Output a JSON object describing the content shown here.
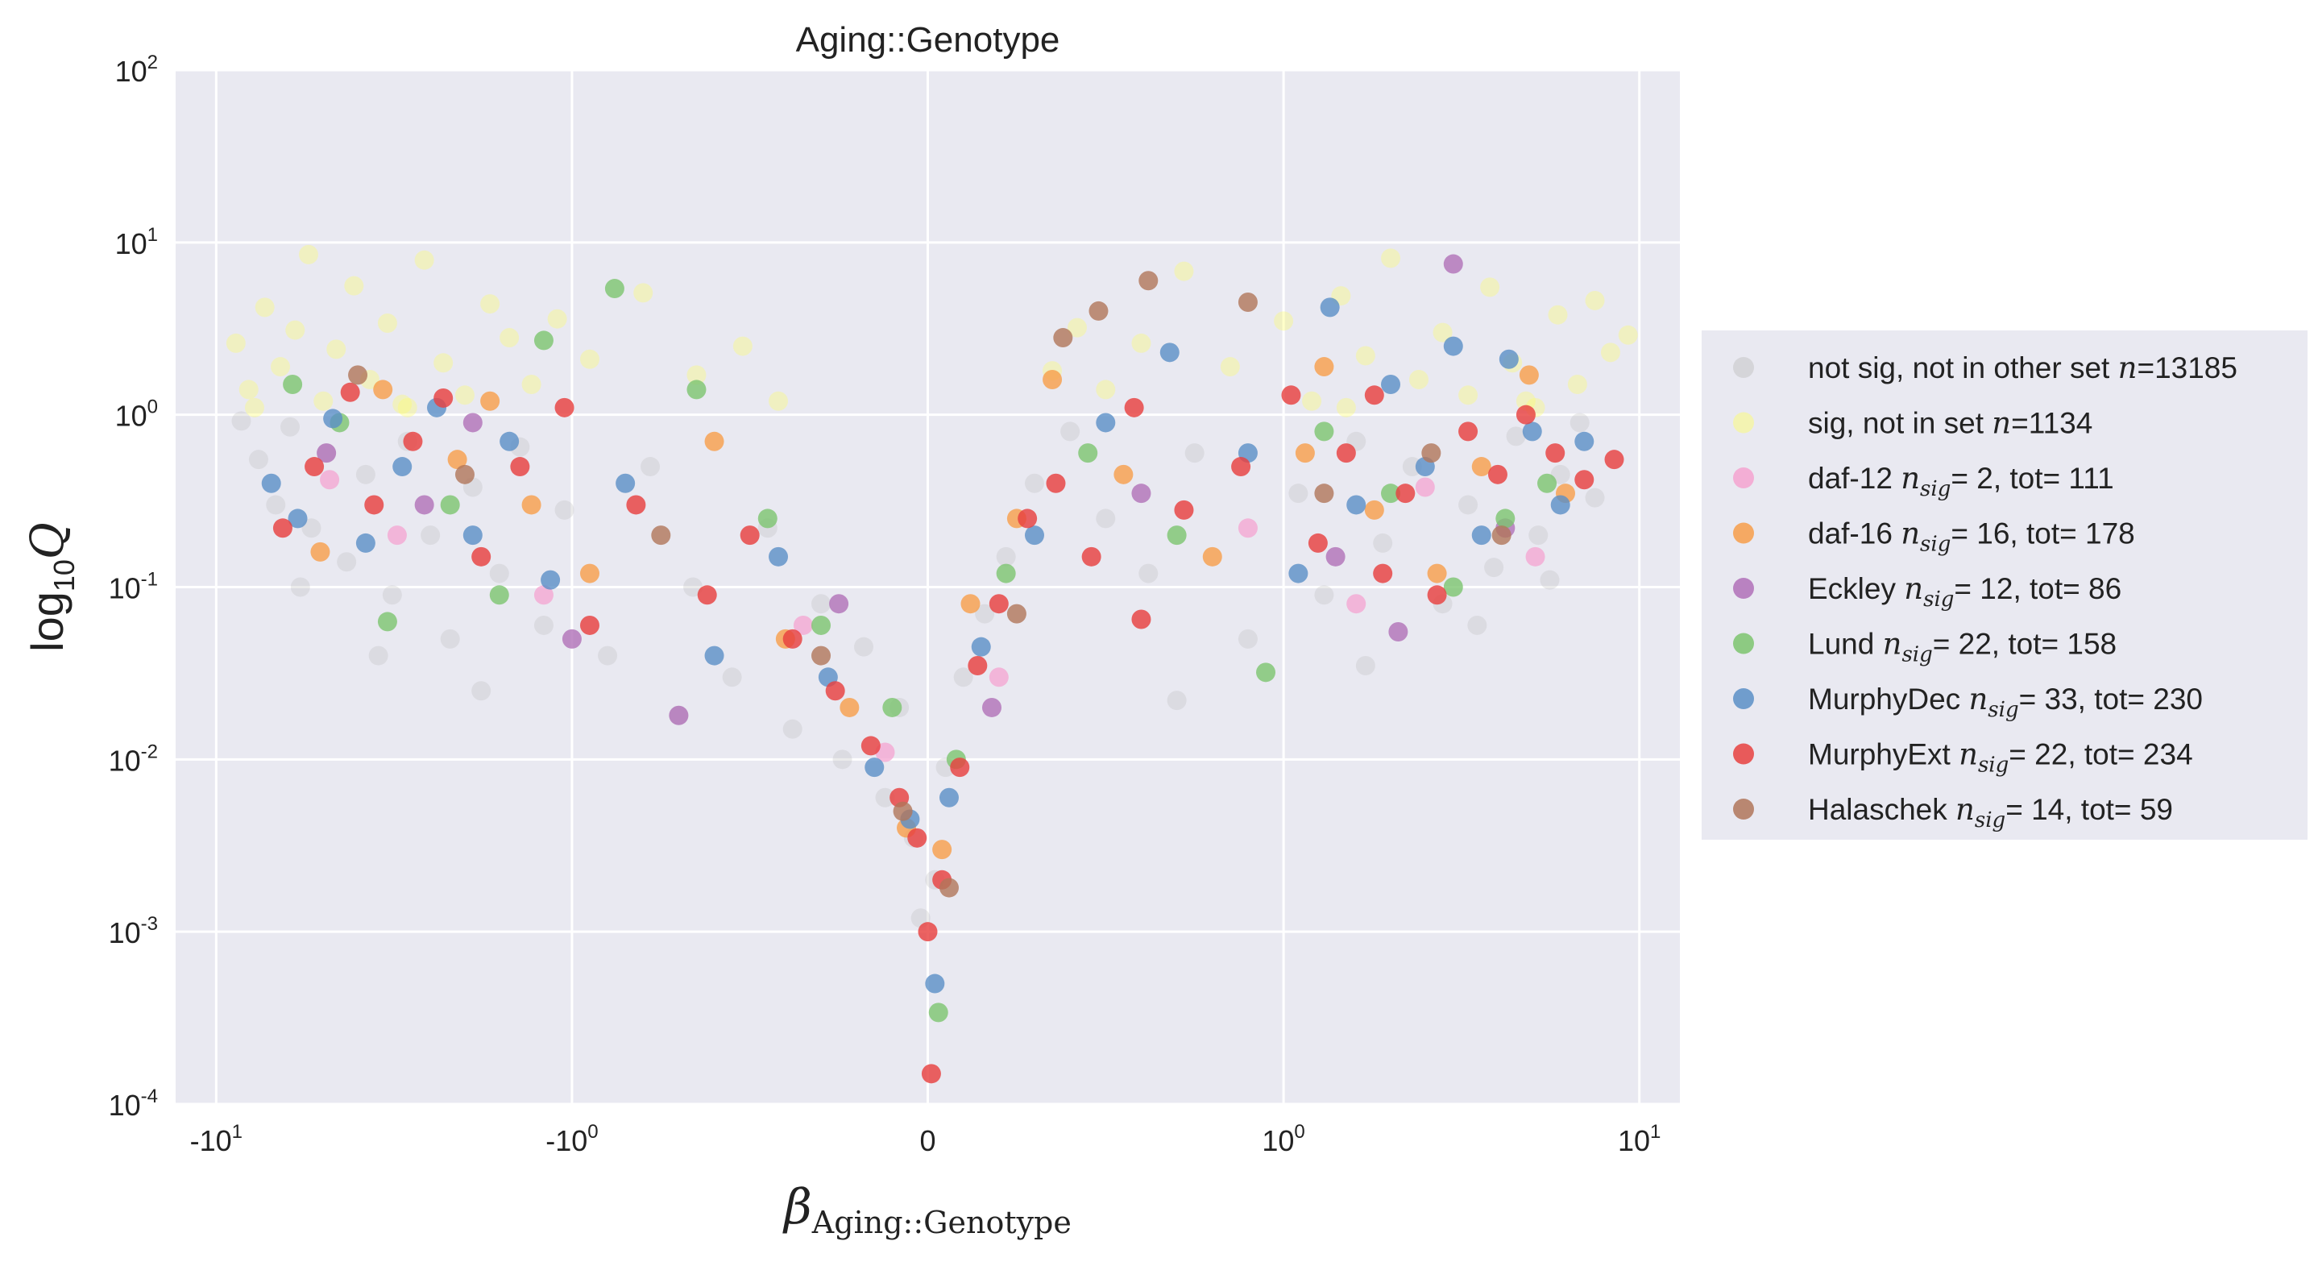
{
  "chart_data": {
    "type": "scatter",
    "title": "Aging::Genotype",
    "xlabel": {
      "symbol": "β",
      "subscript": "Aging::Genotype"
    },
    "ylabel": {
      "prefix": "log",
      "sub": "10",
      "var": "Q"
    },
    "x_scale": "symlog",
    "y_scale": "log",
    "xlim": [
      -13,
      13
    ],
    "ylim": [
      0.0001,
      100
    ],
    "grid": true,
    "legend_position": "right",
    "x_ticks": [
      {
        "value": -10,
        "base": "-10",
        "exp": "1"
      },
      {
        "value": -1,
        "base": "-10",
        "exp": "0"
      },
      {
        "value": 0,
        "base": "0",
        "exp": ""
      },
      {
        "value": 1,
        "base": "10",
        "exp": "0"
      },
      {
        "value": 10,
        "base": "10",
        "exp": "1"
      }
    ],
    "y_ticks": [
      {
        "value": 100,
        "base": "10",
        "exp": "2"
      },
      {
        "value": 10,
        "base": "10",
        "exp": "1"
      },
      {
        "value": 1,
        "base": "10",
        "exp": "0"
      },
      {
        "value": 0.1,
        "base": "10",
        "exp": "-1"
      },
      {
        "value": 0.01,
        "base": "10",
        "exp": "-2"
      },
      {
        "value": 0.001,
        "base": "10",
        "exp": "-3"
      },
      {
        "value": 0.0001,
        "base": "10",
        "exp": "-4"
      }
    ],
    "series": [
      {
        "name": "not sig, not in other set",
        "n_label": "n",
        "n_value": "13185",
        "color": "#bdbdbd",
        "opacity": 0.3,
        "points": [
          [
            -8.5,
            0.92
          ],
          [
            -7.6,
            0.55
          ],
          [
            -6.8,
            0.3
          ],
          [
            -6.2,
            0.85
          ],
          [
            -5.4,
            0.22
          ],
          [
            -4.9,
            0.6
          ],
          [
            -4.3,
            0.14
          ],
          [
            -3.8,
            0.45
          ],
          [
            -3.2,
            0.09
          ],
          [
            -2.9,
            0.7
          ],
          [
            -2.5,
            0.2
          ],
          [
            -2.2,
            0.05
          ],
          [
            -1.9,
            0.38
          ],
          [
            -1.6,
            0.12
          ],
          [
            -1.4,
            0.65
          ],
          [
            -1.2,
            0.06
          ],
          [
            -1.05,
            0.28
          ],
          [
            -0.9,
            0.04
          ],
          [
            -0.78,
            0.5
          ],
          [
            -0.66,
            0.1
          ],
          [
            -0.55,
            0.03
          ],
          [
            -0.45,
            0.22
          ],
          [
            -0.38,
            0.015
          ],
          [
            -0.3,
            0.08
          ],
          [
            -0.24,
            0.01
          ],
          [
            -0.18,
            0.045
          ],
          [
            -0.12,
            0.006
          ],
          [
            -0.08,
            0.02
          ],
          [
            -0.04,
            0.0035
          ],
          [
            -0.02,
            0.0012
          ],
          [
            0.02,
            0.002
          ],
          [
            0.05,
            0.009
          ],
          [
            0.1,
            0.03
          ],
          [
            0.16,
            0.07
          ],
          [
            0.22,
            0.15
          ],
          [
            0.3,
            0.4
          ],
          [
            0.4,
            0.8
          ],
          [
            0.5,
            0.25
          ],
          [
            0.62,
            0.12
          ],
          [
            0.75,
            0.6
          ],
          [
            0.9,
            0.05
          ],
          [
            1.1,
            0.35
          ],
          [
            1.3,
            0.09
          ],
          [
            1.6,
            0.7
          ],
          [
            1.9,
            0.18
          ],
          [
            2.3,
            0.5
          ],
          [
            2.8,
            0.08
          ],
          [
            3.3,
            0.3
          ],
          [
            3.9,
            0.13
          ],
          [
            4.5,
            0.75
          ],
          [
            5.2,
            0.2
          ],
          [
            6.0,
            0.45
          ],
          [
            6.8,
            0.9
          ],
          [
            7.5,
            0.33
          ],
          [
            -5.8,
            0.1
          ],
          [
            -3.5,
            0.04
          ],
          [
            -1.8,
            0.025
          ],
          [
            -0.7,
            0.018
          ],
          [
            0.7,
            0.022
          ],
          [
            1.7,
            0.035
          ],
          [
            3.5,
            0.06
          ],
          [
            5.6,
            0.11
          ]
        ]
      },
      {
        "name": "sig, not in set",
        "n_label": "n",
        "n_value": "1134",
        "color": "#ffff66",
        "opacity": 0.35,
        "points": [
          [
            -8.8,
            2.6
          ],
          [
            -8.1,
            1.4
          ],
          [
            -7.3,
            4.2
          ],
          [
            -6.6,
            1.9
          ],
          [
            -6.0,
            3.1
          ],
          [
            -5.5,
            8.5
          ],
          [
            -5.0,
            1.2
          ],
          [
            -4.6,
            2.4
          ],
          [
            -4.1,
            5.6
          ],
          [
            -3.7,
            1.6
          ],
          [
            -3.3,
            3.4
          ],
          [
            -2.9,
            1.1
          ],
          [
            -2.6,
            7.9
          ],
          [
            -2.3,
            2.0
          ],
          [
            -2.0,
            1.3
          ],
          [
            -1.7,
            4.4
          ],
          [
            -1.5,
            2.8
          ],
          [
            -1.3,
            1.5
          ],
          [
            -1.1,
            3.6
          ],
          [
            -0.95,
            2.1
          ],
          [
            -0.8,
            5.1
          ],
          [
            -0.65,
            1.7
          ],
          [
            -0.52,
            2.5
          ],
          [
            -0.42,
            1.2
          ],
          [
            0.35,
            1.8
          ],
          [
            0.42,
            3.2
          ],
          [
            0.5,
            1.4
          ],
          [
            0.6,
            2.6
          ],
          [
            0.72,
            6.8
          ],
          [
            0.85,
            1.9
          ],
          [
            1.0,
            3.5
          ],
          [
            1.2,
            1.2
          ],
          [
            1.45,
            4.9
          ],
          [
            1.7,
            2.2
          ],
          [
            2.0,
            8.1
          ],
          [
            2.4,
            1.6
          ],
          [
            2.8,
            3.0
          ],
          [
            3.3,
            1.3
          ],
          [
            3.8,
            5.5
          ],
          [
            4.4,
            2.0
          ],
          [
            5.1,
            1.1
          ],
          [
            5.9,
            3.8
          ],
          [
            6.7,
            1.5
          ],
          [
            7.5,
            4.6
          ],
          [
            8.3,
            2.3
          ],
          [
            9.3,
            2.9
          ],
          [
            -7.8,
            1.1
          ],
          [
            -3.0,
            1.15
          ],
          [
            1.5,
            1.1
          ],
          [
            4.8,
            1.2
          ]
        ]
      },
      {
        "name": "daf-12",
        "n_label": "n_sig",
        "n_value": "2",
        "tot": "111",
        "color": "#f4a3d0",
        "opacity": 0.75,
        "points": [
          [
            -4.8,
            0.42
          ],
          [
            -3.1,
            0.2
          ],
          [
            -1.2,
            0.09
          ],
          [
            -0.35,
            0.06
          ],
          [
            -0.12,
            0.011
          ],
          [
            0.2,
            0.03
          ],
          [
            0.9,
            0.22
          ],
          [
            2.5,
            0.38
          ],
          [
            5.1,
            0.15
          ],
          [
            1.6,
            0.08
          ]
        ]
      },
      {
        "name": "daf-16",
        "n_label": "n_sig",
        "n_value": "16",
        "tot": "178",
        "color": "#f79e4a",
        "opacity": 0.8,
        "points": [
          [
            -5.1,
            0.16
          ],
          [
            -3.4,
            1.4
          ],
          [
            -2.1,
            0.55
          ],
          [
            -1.3,
            0.3
          ],
          [
            -0.95,
            0.12
          ],
          [
            -0.6,
            0.7
          ],
          [
            -0.4,
            0.05
          ],
          [
            -0.22,
            0.02
          ],
          [
            -0.06,
            0.004
          ],
          [
            0.04,
            0.003
          ],
          [
            0.12,
            0.08
          ],
          [
            0.25,
            0.25
          ],
          [
            0.35,
            1.6
          ],
          [
            0.55,
            0.45
          ],
          [
            0.8,
            0.15
          ],
          [
            1.15,
            0.6
          ],
          [
            1.8,
            0.28
          ],
          [
            2.7,
            0.12
          ],
          [
            3.6,
            0.5
          ],
          [
            4.9,
            1.7
          ],
          [
            6.2,
            0.35
          ],
          [
            -1.7,
            1.2
          ],
          [
            1.3,
            1.9
          ]
        ]
      },
      {
        "name": "Eckley",
        "n_label": "n_sig",
        "n_value": "12",
        "tot": "86",
        "color": "#b070b8",
        "opacity": 0.8,
        "points": [
          [
            -4.9,
            0.6
          ],
          [
            -2.6,
            0.3
          ],
          [
            -1.0,
            0.05
          ],
          [
            -0.7,
            0.018
          ],
          [
            -0.25,
            0.08
          ],
          [
            0.18,
            0.02
          ],
          [
            0.6,
            0.35
          ],
          [
            1.4,
            0.15
          ],
          [
            2.1,
            0.055
          ],
          [
            3.0,
            7.5
          ],
          [
            4.2,
            0.22
          ],
          [
            -1.9,
            0.9
          ]
        ]
      },
      {
        "name": "Lund",
        "n_label": "n_sig",
        "n_value": "22",
        "tot": "158",
        "color": "#7cc46f",
        "opacity": 0.8,
        "points": [
          [
            -6.1,
            1.5
          ],
          [
            -4.5,
            0.9
          ],
          [
            -3.3,
            0.063
          ],
          [
            -2.2,
            0.3
          ],
          [
            -1.6,
            0.09
          ],
          [
            -1.2,
            2.7
          ],
          [
            -0.88,
            5.4
          ],
          [
            -0.65,
            1.4
          ],
          [
            -0.45,
            0.25
          ],
          [
            -0.3,
            0.06
          ],
          [
            -0.1,
            0.02
          ],
          [
            0.03,
            0.00034
          ],
          [
            0.08,
            0.01
          ],
          [
            0.22,
            0.12
          ],
          [
            0.45,
            0.6
          ],
          [
            0.7,
            0.2
          ],
          [
            0.95,
            0.032
          ],
          [
            1.3,
            0.8
          ],
          [
            2.0,
            0.35
          ],
          [
            3.0,
            0.1
          ],
          [
            4.2,
            0.25
          ],
          [
            5.5,
            0.4
          ]
        ]
      },
      {
        "name": "MurphyDec",
        "n_label": "n_sig",
        "n_value": "33",
        "tot": "230",
        "color": "#5a8fc7",
        "opacity": 0.8,
        "points": [
          [
            -7.0,
            0.4
          ],
          [
            -5.9,
            0.25
          ],
          [
            -4.7,
            0.95
          ],
          [
            -3.8,
            0.18
          ],
          [
            -3.0,
            0.5
          ],
          [
            -2.4,
            1.1
          ],
          [
            -1.9,
            0.2
          ],
          [
            -1.5,
            0.7
          ],
          [
            -1.15,
            0.11
          ],
          [
            -0.85,
            0.4
          ],
          [
            -0.6,
            0.04
          ],
          [
            -0.42,
            0.15
          ],
          [
            -0.28,
            0.03
          ],
          [
            -0.15,
            0.009
          ],
          [
            -0.05,
            0.0045
          ],
          [
            0.02,
            0.0005
          ],
          [
            0.06,
            0.006
          ],
          [
            0.15,
            0.045
          ],
          [
            0.3,
            0.2
          ],
          [
            0.5,
            0.9
          ],
          [
            0.68,
            2.3
          ],
          [
            0.9,
            0.6
          ],
          [
            1.1,
            0.12
          ],
          [
            1.35,
            4.2
          ],
          [
            1.6,
            0.3
          ],
          [
            2.0,
            1.5
          ],
          [
            2.5,
            0.5
          ],
          [
            3.0,
            2.5
          ],
          [
            3.6,
            0.2
          ],
          [
            4.3,
            2.1
          ],
          [
            5.0,
            0.8
          ],
          [
            6.0,
            0.3
          ],
          [
            7.0,
            0.7
          ]
        ]
      },
      {
        "name": "MurphyExt",
        "n_label": "n_sig",
        "n_value": "22",
        "tot": "234",
        "color": "#e8413f",
        "opacity": 0.82,
        "points": [
          [
            -6.5,
            0.22
          ],
          [
            -5.3,
            0.5
          ],
          [
            -4.2,
            1.35
          ],
          [
            -3.6,
            0.3
          ],
          [
            -2.8,
            0.7
          ],
          [
            -2.3,
            1.25
          ],
          [
            -1.8,
            0.15
          ],
          [
            -1.4,
            0.5
          ],
          [
            -1.05,
            1.1
          ],
          [
            -0.82,
            0.3
          ],
          [
            -0.62,
            0.09
          ],
          [
            -0.5,
            0.2
          ],
          [
            -0.38,
            0.05
          ],
          [
            -0.26,
            0.025
          ],
          [
            -0.16,
            0.012
          ],
          [
            -0.08,
            0.006
          ],
          [
            -0.03,
            0.0035
          ],
          [
            0.0,
            0.001
          ],
          [
            0.01,
            0.00015
          ],
          [
            0.04,
            0.002
          ],
          [
            0.09,
            0.009
          ],
          [
            0.14,
            0.035
          ],
          [
            0.2,
            0.08
          ],
          [
            0.28,
            0.25
          ],
          [
            0.36,
            0.4
          ],
          [
            0.46,
            0.15
          ],
          [
            0.58,
            1.1
          ],
          [
            0.72,
            0.28
          ],
          [
            0.88,
            0.5
          ],
          [
            1.05,
            1.3
          ],
          [
            1.25,
            0.18
          ],
          [
            1.5,
            0.6
          ],
          [
            1.8,
            1.3
          ],
          [
            2.2,
            0.35
          ],
          [
            2.7,
            0.09
          ],
          [
            3.3,
            0.8
          ],
          [
            4.0,
            0.45
          ],
          [
            4.8,
            1.0
          ],
          [
            5.8,
            0.6
          ],
          [
            7.0,
            0.42
          ],
          [
            8.5,
            0.55
          ],
          [
            -0.95,
            0.06
          ],
          [
            0.6,
            0.065
          ],
          [
            1.9,
            0.12
          ]
        ]
      },
      {
        "name": "Halaschek",
        "n_label": "n_sig",
        "n_value": "14",
        "tot": "59",
        "color": "#b0765a",
        "opacity": 0.8,
        "points": [
          [
            -4.0,
            1.7
          ],
          [
            -2.0,
            0.45
          ],
          [
            -0.75,
            0.2
          ],
          [
            -0.3,
            0.04
          ],
          [
            -0.07,
            0.005
          ],
          [
            0.06,
            0.0018
          ],
          [
            0.25,
            0.07
          ],
          [
            0.38,
            2.8
          ],
          [
            0.48,
            4.0
          ],
          [
            0.62,
            6.0
          ],
          [
            0.9,
            4.5
          ],
          [
            1.3,
            0.35
          ],
          [
            2.6,
            0.6
          ],
          [
            4.1,
            0.2
          ]
        ]
      }
    ]
  }
}
